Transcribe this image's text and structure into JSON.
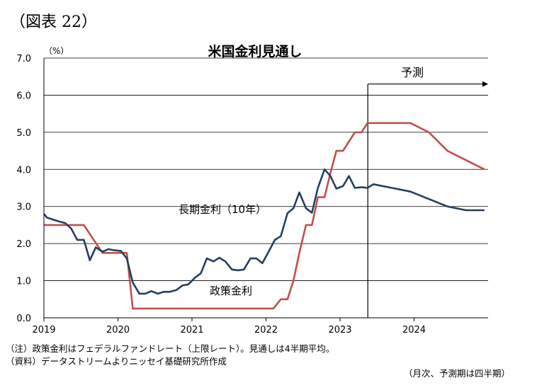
{
  "figure_label": "（図表 22）",
  "chart_data": {
    "type": "line",
    "title": "米国金利見通し",
    "unit_label": "（%）",
    "ylim": [
      0,
      7
    ],
    "ytick_labels": [
      "0.0",
      "1.0",
      "2.0",
      "3.0",
      "4.0",
      "5.0",
      "6.0",
      "7.0"
    ],
    "ytick_values": [
      0,
      1,
      2,
      3,
      4,
      5,
      6,
      7
    ],
    "xlim": [
      2019.0,
      2025.0
    ],
    "xtick_labels": [
      "2019",
      "2020",
      "2021",
      "2022",
      "2023",
      "2024"
    ],
    "xtick_values": [
      2019,
      2020,
      2021,
      2022,
      2023,
      2024
    ],
    "grid": true,
    "forecast_start": 2023.375,
    "forecast_label": "予測",
    "series": [
      {
        "name": "長期金利（10年）",
        "color": "#243f60",
        "x": [
          2019.0,
          2019.04,
          2019.12,
          2019.2,
          2019.29,
          2019.37,
          2019.45,
          2019.54,
          2019.62,
          2019.7,
          2019.79,
          2019.87,
          2019.95,
          2020.04,
          2020.12,
          2020.2,
          2020.29,
          2020.37,
          2020.45,
          2020.54,
          2020.62,
          2020.7,
          2020.79,
          2020.87,
          2020.95,
          2021.04,
          2021.12,
          2021.2,
          2021.29,
          2021.37,
          2021.45,
          2021.54,
          2021.62,
          2021.7,
          2021.79,
          2021.87,
          2021.95,
          2022.04,
          2022.12,
          2022.2,
          2022.29,
          2022.37,
          2022.45,
          2022.54,
          2022.62,
          2022.7,
          2022.79,
          2022.87,
          2022.95,
          2023.04,
          2023.12,
          2023.2,
          2023.29,
          2023.37,
          2023.45,
          2023.7,
          2023.95,
          2024.2,
          2024.45,
          2024.7,
          2024.95
        ],
        "values": [
          2.8,
          2.7,
          2.65,
          2.6,
          2.55,
          2.4,
          2.1,
          2.1,
          1.55,
          1.9,
          1.78,
          1.85,
          1.82,
          1.8,
          1.6,
          0.95,
          0.65,
          0.65,
          0.72,
          0.65,
          0.7,
          0.7,
          0.75,
          0.87,
          0.9,
          1.08,
          1.2,
          1.6,
          1.52,
          1.62,
          1.52,
          1.3,
          1.28,
          1.3,
          1.6,
          1.6,
          1.47,
          1.8,
          2.1,
          2.2,
          2.82,
          2.95,
          3.38,
          2.95,
          2.83,
          3.5,
          4.0,
          3.82,
          3.48,
          3.55,
          3.82,
          3.5,
          3.52,
          3.5,
          3.6,
          3.5,
          3.4,
          3.2,
          3.0,
          2.9,
          2.9
        ]
      },
      {
        "name": "政策金利",
        "color": "#c0504d",
        "x": [
          2019.0,
          2019.54,
          2019.79,
          2020.12,
          2020.2,
          2022.1,
          2022.2,
          2022.29,
          2022.37,
          2022.45,
          2022.54,
          2022.62,
          2022.7,
          2022.79,
          2022.87,
          2022.95,
          2023.04,
          2023.12,
          2023.2,
          2023.29,
          2023.37,
          2023.45,
          2023.7,
          2023.95,
          2024.2,
          2024.45,
          2024.7,
          2024.95
        ],
        "values": [
          2.5,
          2.5,
          1.75,
          1.75,
          0.25,
          0.25,
          0.5,
          0.5,
          1.0,
          1.75,
          2.5,
          2.5,
          3.25,
          3.25,
          3.9,
          4.5,
          4.5,
          4.75,
          5.0,
          5.0,
          5.25,
          5.25,
          5.25,
          5.25,
          5.0,
          4.5,
          4.25,
          4.0
        ]
      }
    ],
    "series_labels": [
      "長期金利（10年）",
      "政策金利"
    ]
  },
  "notes": {
    "note1": "（注）政策金利はフェデラルファンドレート（上限レート）。見通しは4半期平均。",
    "note2": "（資料）データストリームよりニッセイ基礎研究所作成",
    "note3": "（月次、予測期は四半期）"
  }
}
